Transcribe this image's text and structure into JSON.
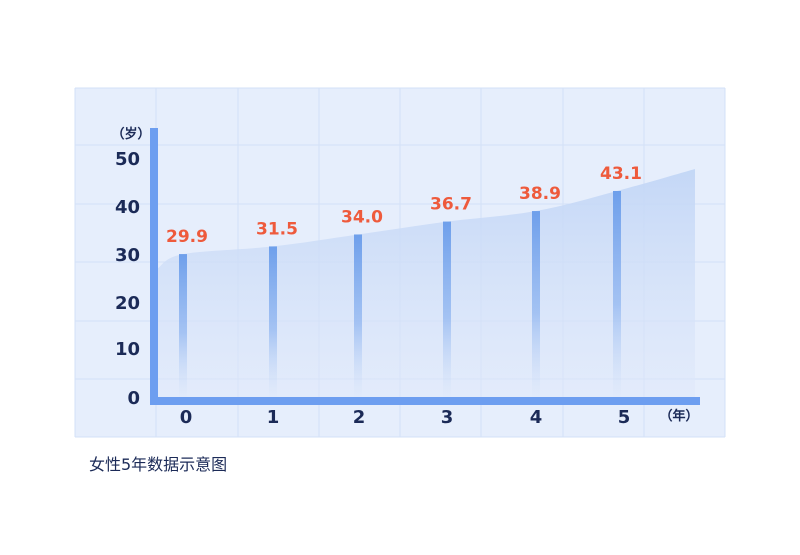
{
  "chart_data": {
    "type": "bar",
    "title": "女性5年数据示意图",
    "x_unit": "（年）",
    "y_unit": "（岁）",
    "categories": [
      "0",
      "1",
      "2",
      "3",
      "4",
      "5"
    ],
    "values": [
      29.9,
      31.5,
      34.0,
      36.7,
      38.9,
      43.1
    ],
    "value_labels": [
      "29.9",
      "31.5",
      "34.0",
      "36.7",
      "38.9",
      "43.1"
    ],
    "y_ticks": [
      "0",
      "10",
      "20",
      "30",
      "40",
      "50"
    ],
    "ylim": [
      0,
      55
    ],
    "grid": true,
    "colors": {
      "panel": "#e6eefc",
      "grid": "#d3e0f7",
      "axis": "#6d9ef0",
      "bar": "#79a6ee",
      "area": "#c7daf7",
      "label": "#ee5a3c",
      "text": "#1b2a57"
    }
  }
}
